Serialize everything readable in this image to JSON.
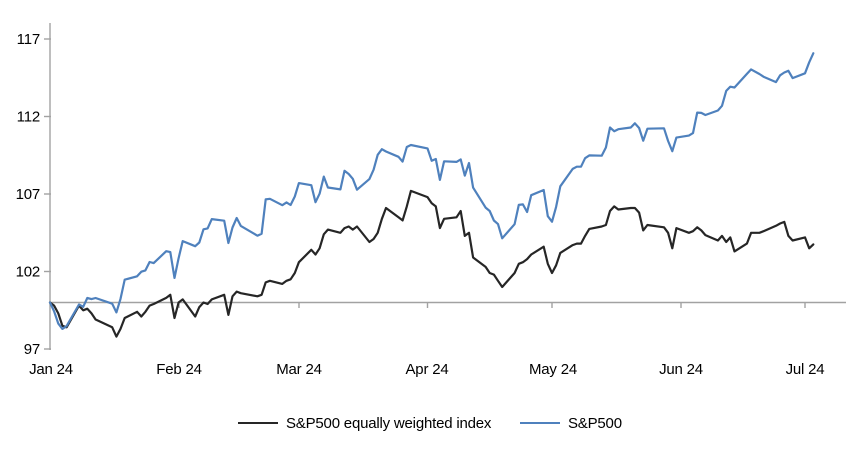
{
  "chart_data": {
    "type": "line",
    "title": "",
    "x_tick_labels": [
      "Jan 24",
      "Feb 24",
      "Mar 24",
      "Apr 24",
      "May 24",
      "Jun 24",
      "Jul 24"
    ],
    "y_tick_labels": [
      "117",
      "112",
      "107",
      "102",
      "97"
    ],
    "y_axis": {
      "min": 97,
      "max": 118,
      "ticks": [
        117,
        112,
        107,
        102,
        97
      ],
      "baseline_value": 100
    },
    "x_axis": {
      "unit": "trading days Jan–Jul 2024",
      "gridline": "horizontal line at index = 100"
    },
    "legend_position": "bottom",
    "axis_color": "#a2a2a2",
    "x_days": [
      0,
      1,
      2,
      3,
      4,
      7,
      8,
      9,
      10,
      11,
      15,
      16,
      17,
      18,
      21,
      22,
      23,
      24,
      25,
      28,
      29,
      30,
      31,
      32,
      35,
      36,
      37,
      38,
      39,
      42,
      43,
      44,
      45,
      46,
      50,
      51,
      52,
      53,
      56,
      57,
      58,
      59,
      60,
      63,
      64,
      65,
      66,
      67,
      70,
      71,
      72,
      73,
      74,
      77,
      78,
      79,
      80,
      81,
      84,
      85,
      86,
      87,
      91,
      92,
      93,
      94,
      95,
      98,
      99,
      100,
      101,
      102,
      105,
      106,
      107,
      108,
      109,
      112,
      113,
      114,
      115,
      116,
      119,
      120,
      121,
      122,
      123,
      126,
      127,
      128,
      129,
      130,
      133,
      134,
      135,
      136,
      137,
      140,
      141,
      142,
      143,
      144,
      148,
      149,
      150,
      151,
      154,
      155,
      156,
      157,
      158,
      161,
      162,
      163,
      164,
      165,
      168,
      169,
      171,
      172,
      175,
      176,
      177,
      178,
      179,
      182,
      183,
      184
    ],
    "series": [
      {
        "name": "S&P500 equally weighted index",
        "color": "#262626",
        "values": [
          100.0,
          99.8,
          99.3,
          98.5,
          98.4,
          99.8,
          99.5,
          99.6,
          99.3,
          98.9,
          98.4,
          97.8,
          98.3,
          99.0,
          99.4,
          99.1,
          99.4,
          99.8,
          99.9,
          100.3,
          100.5,
          99.0,
          100.0,
          100.2,
          99.1,
          99.7,
          100.0,
          99.9,
          100.2,
          100.5,
          99.2,
          100.4,
          100.7,
          100.6,
          100.4,
          100.5,
          101.3,
          101.4,
          101.2,
          101.4,
          101.5,
          101.9,
          102.6,
          103.4,
          103.1,
          103.5,
          104.4,
          104.7,
          104.5,
          104.8,
          104.9,
          104.7,
          104.9,
          103.9,
          104.1,
          104.5,
          105.4,
          106.1,
          105.5,
          105.3,
          106.2,
          107.2,
          106.8,
          106.4,
          106.2,
          104.8,
          105.4,
          105.5,
          105.9,
          104.3,
          104.5,
          102.9,
          102.3,
          101.9,
          101.8,
          101.4,
          101.0,
          101.9,
          102.5,
          102.6,
          102.8,
          103.1,
          103.6,
          102.5,
          101.9,
          102.4,
          103.2,
          103.7,
          103.8,
          103.8,
          104.3,
          104.75,
          104.9,
          105.0,
          105.9,
          106.2,
          106.0,
          106.1,
          106.1,
          105.8,
          104.65,
          105.0,
          104.85,
          104.5,
          103.5,
          104.8,
          104.5,
          104.6,
          104.85,
          104.65,
          104.35,
          104.0,
          104.3,
          103.9,
          104.2,
          103.3,
          103.8,
          104.5,
          104.5,
          104.6,
          104.95,
          105.1,
          105.2,
          104.3,
          104.0,
          104.2,
          103.5,
          103.75
        ]
      },
      {
        "name": "S&P500",
        "color": "#4f81bd",
        "values": [
          100.0,
          99.43,
          98.64,
          98.3,
          98.48,
          99.87,
          99.72,
          100.29,
          100.22,
          100.29,
          99.92,
          99.36,
          100.23,
          101.47,
          101.69,
          101.99,
          102.07,
          102.61,
          102.54,
          103.31,
          103.25,
          101.59,
          102.86,
          103.96,
          103.63,
          103.87,
          104.72,
          104.78,
          105.38,
          105.28,
          103.84,
          104.84,
          105.45,
          104.94,
          104.31,
          104.44,
          106.65,
          106.69,
          106.28,
          106.46,
          106.29,
          106.84,
          107.7,
          107.57,
          106.47,
          107.02,
          108.12,
          107.42,
          107.3,
          108.5,
          108.29,
          107.98,
          107.28,
          107.96,
          108.57,
          109.53,
          109.89,
          109.74,
          109.4,
          109.09,
          110.03,
          110.16,
          109.94,
          109.14,
          109.26,
          107.91,
          109.11,
          109.07,
          109.23,
          108.19,
          109.0,
          107.41,
          106.12,
          105.9,
          105.29,
          105.06,
          104.14,
          105.05,
          106.3,
          106.33,
          105.84,
          106.92,
          107.26,
          105.57,
          105.21,
          106.17,
          107.5,
          108.62,
          108.76,
          108.76,
          109.31,
          109.49,
          109.47,
          110.0,
          111.29,
          111.05,
          111.18,
          111.29,
          111.56,
          111.26,
          110.44,
          111.21,
          111.24,
          110.42,
          109.76,
          110.64,
          110.77,
          110.93,
          112.25,
          112.23,
          112.1,
          112.39,
          112.69,
          113.65,
          113.92,
          113.87,
          114.75,
          115.04,
          114.74,
          114.57,
          114.22,
          114.66,
          114.84,
          114.95,
          114.48,
          114.79,
          115.5,
          116.08
        ]
      }
    ]
  }
}
